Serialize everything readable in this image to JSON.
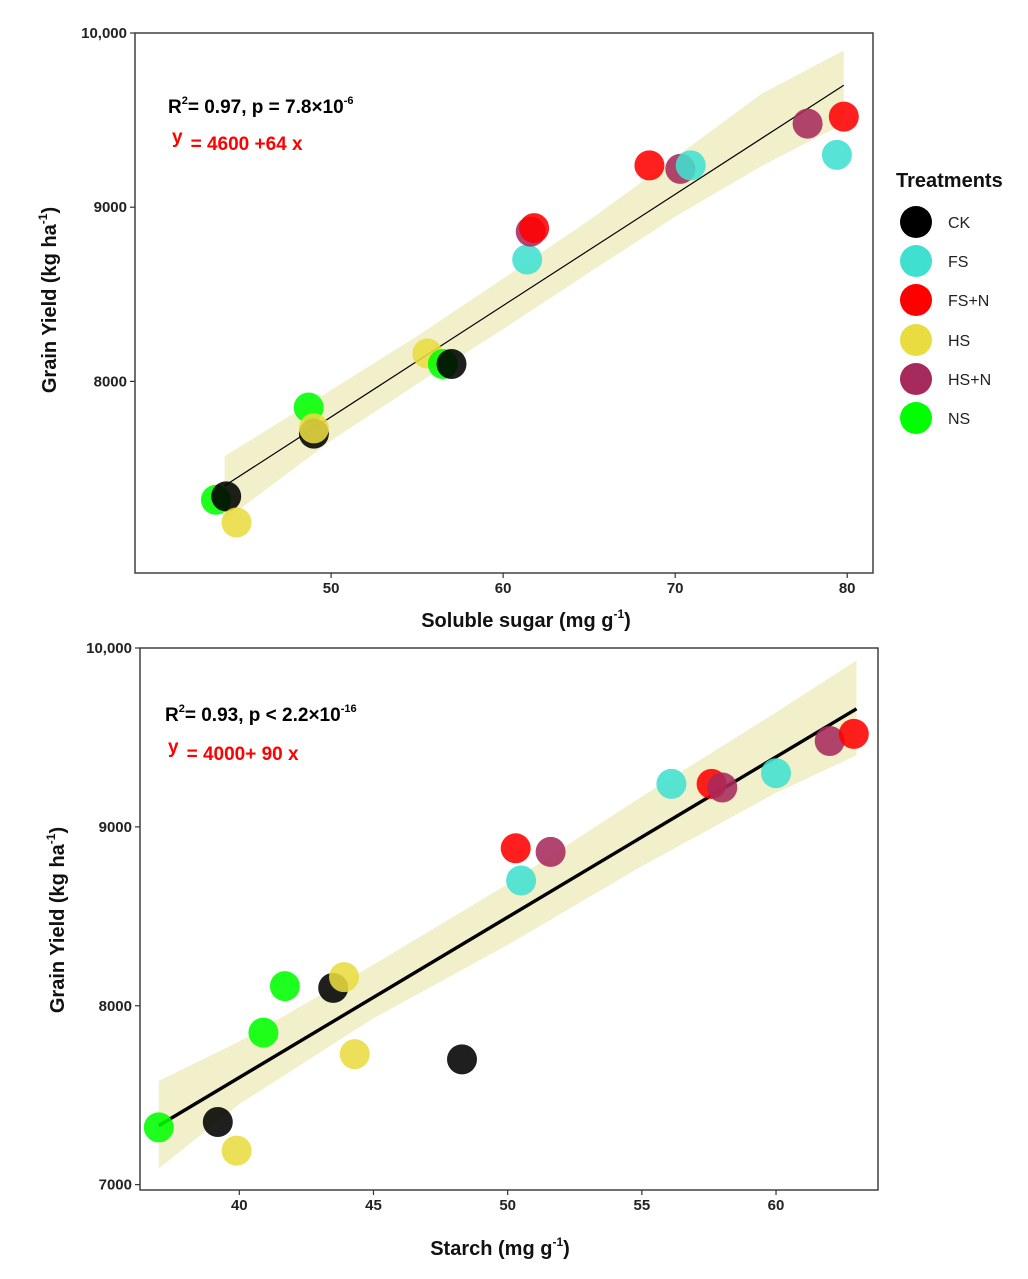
{
  "legend": {
    "title": "Treatments",
    "items": [
      {
        "label": "CK",
        "color": "#000000"
      },
      {
        "label": "FS",
        "color": "#40E0D0"
      },
      {
        "label": "FS+N",
        "color": "#FF0000"
      },
      {
        "label": "HS",
        "color": "#E8DC40"
      },
      {
        "label": "HS+N",
        "color": "#A62A5C"
      },
      {
        "label": "NS",
        "color": "#00FF00"
      }
    ]
  },
  "chart_data": [
    {
      "type": "scatter",
      "xlabel": "Soluble sugar (mg g",
      "xlabel_sup": "-1",
      "xlabel_end": ")",
      "ylabel": "Grain Yield (kg ha",
      "ylabel_sup": "-1",
      "ylabel_end": ")",
      "xlim": [
        38.6,
        81.5
      ],
      "ylim": [
        6900,
        10000
      ],
      "xticks": [
        50,
        60,
        70,
        80
      ],
      "xtick_labels": [
        "50",
        "60",
        "70",
        "80"
      ],
      "yticks": [
        8000,
        9000,
        10000
      ],
      "ytick_labels": [
        "8000",
        "9000",
        "10,000"
      ],
      "stat_line": {
        "prefix": "R",
        "r2_sup": "2",
        "r2_text": "= 0.97, p = 7.8×10",
        "p_sup": "-6"
      },
      "equation": {
        "y": "y",
        "text": "= 4600 +64  x"
      },
      "fit": {
        "x": [
          43.8,
          79.8
        ],
        "y": [
          7400,
          9700
        ]
      },
      "band": {
        "x": [
          43.8,
          50,
          55,
          60,
          65,
          70,
          75,
          79.8
        ],
        "lower": [
          7200,
          7660,
          7985,
          8300,
          8625,
          8945,
          9235,
          9480
        ],
        "upper": [
          7570,
          7950,
          8260,
          8590,
          8925,
          9285,
          9650,
          9900
        ]
      },
      "points": [
        {
          "t": "NS",
          "x": 43.3,
          "y": 7320
        },
        {
          "t": "CK",
          "x": 43.9,
          "y": 7340
        },
        {
          "t": "HS",
          "x": 44.5,
          "y": 7190
        },
        {
          "t": "NS",
          "x": 48.7,
          "y": 7850
        },
        {
          "t": "CK",
          "x": 49.0,
          "y": 7700
        },
        {
          "t": "HS",
          "x": 49.0,
          "y": 7730
        },
        {
          "t": "HS",
          "x": 55.6,
          "y": 8160
        },
        {
          "t": "NS",
          "x": 56.5,
          "y": 8100
        },
        {
          "t": "CK",
          "x": 57.0,
          "y": 8100
        },
        {
          "t": "FS",
          "x": 61.4,
          "y": 8700
        },
        {
          "t": "HS+N",
          "x": 61.6,
          "y": 8860
        },
        {
          "t": "FS+N",
          "x": 61.8,
          "y": 8880
        },
        {
          "t": "FS+N",
          "x": 68.5,
          "y": 9240
        },
        {
          "t": "HS+N",
          "x": 70.3,
          "y": 9220
        },
        {
          "t": "FS",
          "x": 70.9,
          "y": 9240
        },
        {
          "t": "HS+N",
          "x": 77.7,
          "y": 9480
        },
        {
          "t": "FS",
          "x": 79.4,
          "y": 9300
        },
        {
          "t": "FS+N",
          "x": 79.8,
          "y": 9520
        }
      ]
    },
    {
      "type": "scatter",
      "xlabel": "Starch (mg g",
      "xlabel_sup": "-1",
      "xlabel_end": ")",
      "ylabel": "Grain Yield (kg ha",
      "ylabel_sup": "-1",
      "ylabel_end": ")",
      "xlim": [
        36.3,
        63.8
      ],
      "ylim": [
        6970,
        10000
      ],
      "xticks": [
        40,
        45,
        50,
        55,
        60
      ],
      "xtick_labels": [
        "40",
        "45",
        "50",
        "55",
        "60"
      ],
      "yticks": [
        7000,
        8000,
        9000,
        10000
      ],
      "ytick_labels": [
        "7000",
        "8000",
        "9000",
        "10,000"
      ],
      "stat_line": {
        "prefix": "R",
        "r2_sup": "2",
        "r2_text": "= 0.93, p < 2.2×10",
        "p_sup": "-16"
      },
      "equation": {
        "y": "y",
        "text": "= 4000+ 90 x"
      },
      "fit": {
        "x": [
          37.0,
          63.0
        ],
        "y": [
          7330,
          9660
        ]
      },
      "band": {
        "x": [
          37.0,
          40,
          45,
          50,
          55,
          60,
          63.0
        ],
        "lower": [
          7090,
          7450,
          7930,
          8340,
          8780,
          9190,
          9400
        ],
        "upper": [
          7580,
          7800,
          8230,
          8680,
          9170,
          9640,
          9930
        ]
      },
      "points": [
        {
          "t": "NS",
          "x": 37.0,
          "y": 7320
        },
        {
          "t": "CK",
          "x": 39.2,
          "y": 7350
        },
        {
          "t": "HS",
          "x": 39.9,
          "y": 7190
        },
        {
          "t": "NS",
          "x": 40.9,
          "y": 7850
        },
        {
          "t": "NS",
          "x": 41.7,
          "y": 8110
        },
        {
          "t": "CK",
          "x": 43.5,
          "y": 8100
        },
        {
          "t": "HS",
          "x": 43.9,
          "y": 8160
        },
        {
          "t": "HS",
          "x": 44.3,
          "y": 7730
        },
        {
          "t": "CK",
          "x": 48.3,
          "y": 7700
        },
        {
          "t": "FS+N",
          "x": 50.3,
          "y": 8880
        },
        {
          "t": "FS",
          "x": 50.5,
          "y": 8700
        },
        {
          "t": "HS+N",
          "x": 51.6,
          "y": 8860
        },
        {
          "t": "FS",
          "x": 56.1,
          "y": 9240
        },
        {
          "t": "FS+N",
          "x": 57.6,
          "y": 9240
        },
        {
          "t": "HS+N",
          "x": 58.0,
          "y": 9220
        },
        {
          "t": "FS",
          "x": 60.0,
          "y": 9300
        },
        {
          "t": "HS+N",
          "x": 62.0,
          "y": 9480
        },
        {
          "t": "FS+N",
          "x": 62.9,
          "y": 9520
        }
      ]
    }
  ]
}
